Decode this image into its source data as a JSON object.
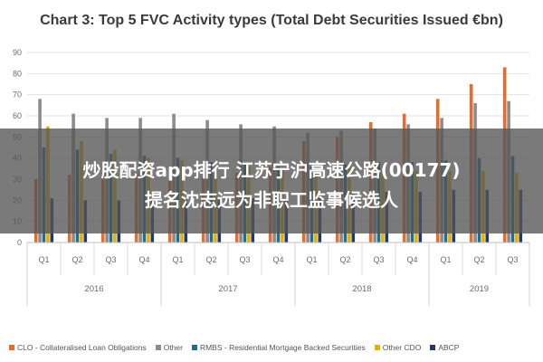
{
  "chart_data": {
    "type": "bar",
    "title": "Chart 3: Top 5 FVC Activity types (Total Debt Securities Issued €bn)",
    "ylim": [
      0,
      90
    ],
    "yticks": [
      0,
      10,
      20,
      30,
      40,
      50,
      60,
      70,
      80,
      90
    ],
    "grid": true,
    "legend_position": "bottom",
    "categories": [
      "Q1",
      "Q2",
      "Q3",
      "Q4",
      "Q1",
      "Q2",
      "Q3",
      "Q4",
      "Q1",
      "Q2",
      "Q3",
      "Q4",
      "Q1",
      "Q2",
      "Q3"
    ],
    "year_groups": [
      {
        "label": "2016",
        "count": 4
      },
      {
        "label": "2017",
        "count": 4
      },
      {
        "label": "2018",
        "count": 4
      },
      {
        "label": "2019",
        "count": 3
      }
    ],
    "series": [
      {
        "name": "CLO - Collateralised Loan Obligations",
        "color": "#e46c2e",
        "values": [
          30,
          32,
          33,
          33,
          30,
          31,
          33,
          36,
          48,
          50,
          57,
          61,
          68,
          75,
          83
        ]
      },
      {
        "name": "Other",
        "color": "#8c8c8c",
        "values": [
          68,
          61,
          59,
          59,
          61,
          58,
          56,
          55,
          52,
          53,
          54,
          56,
          59,
          66,
          67
        ]
      },
      {
        "name": "RMBS - Residential Mortgage Backed Securities",
        "color": "#1f6e8c",
        "values": [
          45,
          44,
          42,
          41,
          40,
          38,
          37,
          36,
          36,
          37,
          38,
          38,
          39,
          40,
          41
        ]
      },
      {
        "name": "Other CDO",
        "color": "#e8b000",
        "values": [
          55,
          48,
          44,
          40,
          39,
          37,
          36,
          35,
          35,
          35,
          34,
          34,
          34,
          34,
          33
        ]
      },
      {
        "name": "ABCP",
        "color": "#1f3a73",
        "values": [
          21,
          20,
          20,
          20,
          20,
          20,
          21,
          21,
          22,
          23,
          24,
          24,
          25,
          25,
          25
        ]
      }
    ]
  },
  "overlay": {
    "line1": "炒股配资app排行 江苏宁沪高速公路(00177)",
    "line2": "提名沈志远为非职工监事候选人"
  }
}
